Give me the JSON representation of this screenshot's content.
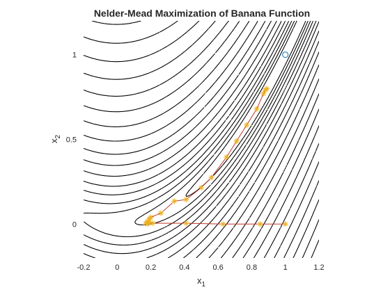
{
  "chart_data": {
    "type": "scatter",
    "title": "Nelder-Mead Maximization of Banana Function",
    "xlabel": {
      "base": "x",
      "sub": "1"
    },
    "ylabel": {
      "base": "x",
      "sub": "2"
    },
    "xlim": [
      -0.2,
      1.2
    ],
    "ylim": [
      -0.2,
      1.2
    ],
    "xticks": [
      "-0.2",
      "0",
      "0.2",
      "0.4",
      "0.6",
      "0.8",
      "1",
      "1.2"
    ],
    "yticks": [
      "0",
      "0.5",
      "1"
    ],
    "grid": false,
    "legend": "none",
    "colors": {
      "path_line": "#c0392b",
      "path_marker": "#edb120",
      "optimum_marker": "#0072bd",
      "contour": "#000000",
      "axes": "#262626"
    },
    "contour": {
      "function": "100*(x2 - x1^2)^2 + (1 - x1)^2",
      "levels": [
        0.35,
        0.8,
        1.5,
        2.5,
        4,
        6,
        9,
        13,
        18,
        25,
        34,
        45,
        58,
        74,
        93,
        115,
        140,
        168,
        200,
        235,
        275,
        320
      ],
      "style": "dotted"
    },
    "series": [
      {
        "type": "line-marker",
        "marker": "asterisk",
        "x": [
          1.0,
          0.85,
          0.63,
          0.41,
          0.21,
          0.19,
          0.18,
          0.17,
          0.18,
          0.19,
          0.2,
          0.26,
          0.34,
          0.41,
          0.5,
          0.56,
          0.65,
          0.71,
          0.77,
          0.83,
          0.87,
          0.88,
          0.89
        ],
        "y": [
          0.0,
          0.0,
          0.0,
          0.005,
          0.005,
          0.01,
          0.0,
          0.005,
          0.015,
          0.03,
          0.04,
          0.065,
          0.135,
          0.145,
          0.215,
          0.275,
          0.395,
          0.49,
          0.585,
          0.68,
          0.77,
          0.79,
          0.8
        ]
      },
      {
        "type": "point",
        "marker": "circle",
        "x": [
          1.0
        ],
        "y": [
          1.0
        ]
      }
    ]
  }
}
